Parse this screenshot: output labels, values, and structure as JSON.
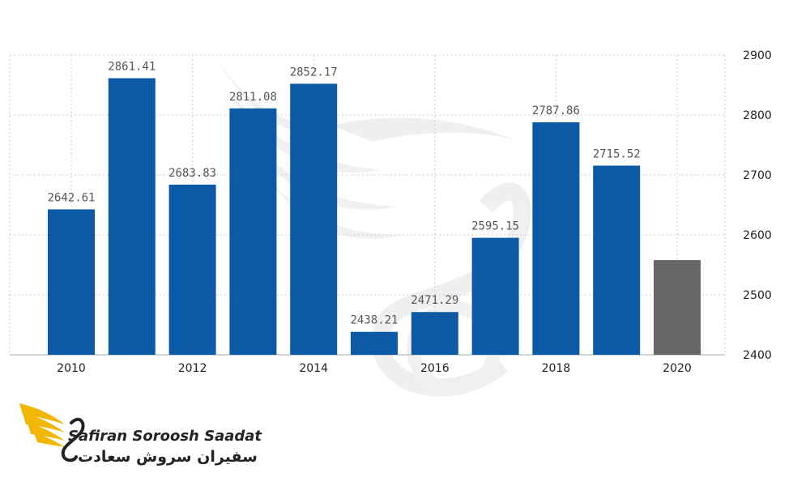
{
  "chart_data": {
    "type": "bar",
    "categories": [
      "2010",
      "2011",
      "2012",
      "2013",
      "2014",
      "2015",
      "2016",
      "2017",
      "2018",
      "2019",
      "2020"
    ],
    "values": [
      2642.61,
      2861.41,
      2683.83,
      2811.08,
      2852.17,
      2438.21,
      2471.29,
      2595.15,
      2787.86,
      2715.52,
      2558
    ],
    "labels": [
      "2642.61",
      "2861.41",
      "2683.83",
      "2811.08",
      "2852.17",
      "2438.21",
      "2471.29",
      "2595.15",
      "2787.86",
      "2715.52",
      ""
    ],
    "x_tick_labels": [
      "2010",
      "",
      "2012",
      "",
      "2014",
      "",
      "2016",
      "",
      "2018",
      "",
      "2020"
    ],
    "y_ticks": [
      2400,
      2500,
      2600,
      2700,
      2800,
      2900
    ],
    "ylim": [
      2400,
      2900
    ],
    "y_axis_position": "right",
    "grid": true,
    "colors": {
      "actual": "#0c5aa6",
      "forecast": "#666666",
      "grid": "#cccccc"
    },
    "bar_colors": [
      "actual",
      "actual",
      "actual",
      "actual",
      "actual",
      "actual",
      "actual",
      "actual",
      "actual",
      "actual",
      "forecast"
    ]
  },
  "watermark": {
    "brand_en": "Safiran Soroosh Saadat",
    "brand_fa": "سفیران سروش سعادت"
  },
  "logo": {
    "name": "Safiran Soroosh Saadat",
    "text_en": "Safiran Soroosh Saadat",
    "text_fa": "سفیران سروش سعادت",
    "colors": {
      "wing": "#f2b705",
      "text": "#222222"
    }
  }
}
